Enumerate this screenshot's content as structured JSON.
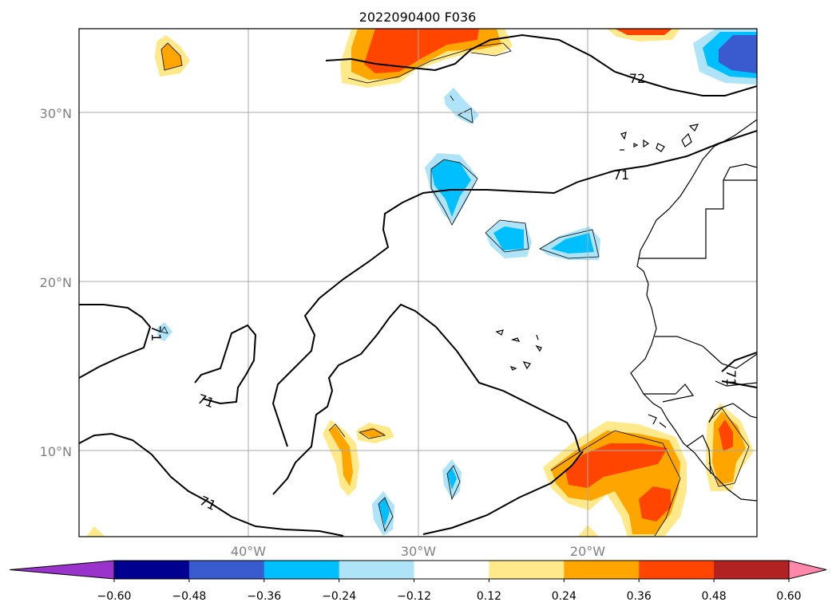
{
  "title": "2022090400 F036",
  "map": {
    "lat_labels": [
      "30°N",
      "20°N",
      "10°N"
    ],
    "lon_labels": [
      "40°W",
      "30°W",
      "20°W"
    ],
    "contour_labels": [
      "72",
      "71",
      "71",
      "71",
      "71",
      "71"
    ]
  },
  "colorbar": {
    "labels": [
      "−0.60",
      "−0.48",
      "−0.36",
      "−0.24",
      "−0.12",
      "0.12",
      "0.24",
      "0.36",
      "0.48",
      "0.60"
    ],
    "colors": [
      "#9933cc",
      "#000090",
      "#3a5bd0",
      "#00bfff",
      "#aee3f8",
      "#ffffff",
      "#ffe98a",
      "#ffa500",
      "#ff4500",
      "#b22222",
      "#ff88aa"
    ],
    "extend_low_color": "#9933cc",
    "extend_high_color": "#ff88aa"
  },
  "fill_colors": {
    "pos1": "#ffe98a",
    "pos2": "#ffa500",
    "pos3": "#ff4500",
    "neg1": "#aee3f8",
    "neg2": "#00bfff",
    "neg3": "#3a5bd0"
  }
}
